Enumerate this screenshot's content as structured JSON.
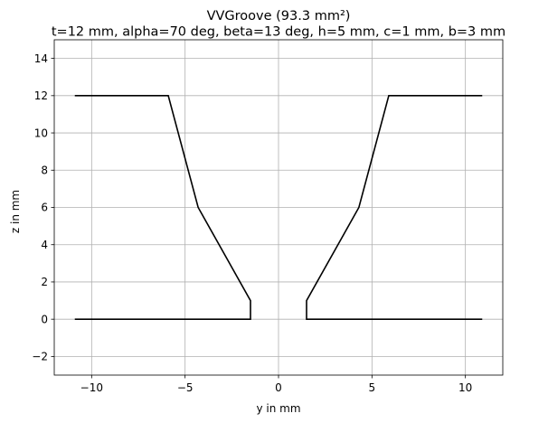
{
  "chart_data": {
    "type": "line",
    "title": "VVGroove (93.3 mm²)",
    "subtitle": "t=12 mm, alpha=70 deg, beta=13 deg, h=5 mm, c=1 mm, b=3 mm",
    "xlabel": "y in mm",
    "ylabel": "z in mm",
    "xlim": [
      -12,
      12
    ],
    "ylim": [
      -3,
      15
    ],
    "xticks": [
      -10,
      -5,
      0,
      5,
      10
    ],
    "yticks": [
      -2,
      0,
      2,
      4,
      6,
      8,
      10,
      12,
      14
    ],
    "xtick_labels": [
      "−10",
      "−5",
      "0",
      "5",
      "10"
    ],
    "ytick_labels": [
      "−2",
      "0",
      "2",
      "4",
      "6",
      "8",
      "10",
      "12",
      "14"
    ],
    "grid": true,
    "series": [
      {
        "color": "#000000",
        "x": [
          -10.9,
          -1.5,
          -1.5,
          -4.3,
          -5.9,
          -10.9
        ],
        "y": [
          0,
          0,
          1,
          6,
          12,
          12
        ]
      },
      {
        "color": "#000000",
        "x": [
          10.9,
          1.5,
          1.5,
          4.3,
          5.9,
          10.9
        ],
        "y": [
          0,
          0,
          1,
          6,
          12,
          12
        ]
      }
    ]
  }
}
